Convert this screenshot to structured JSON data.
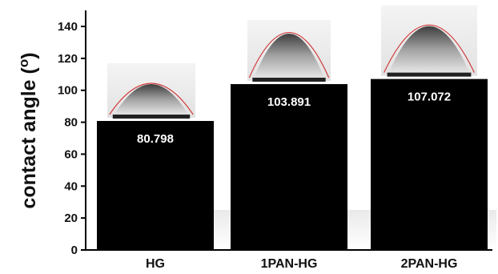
{
  "chart_data": {
    "type": "bar",
    "categories": [
      "HG",
      "1PAN-HG",
      "2PAN-HG"
    ],
    "values": [
      80.798,
      103.891,
      107.072
    ],
    "data_labels": [
      "80.798",
      "103.891",
      "107.072"
    ],
    "title": "",
    "xlabel": "",
    "ylabel": "contact angle (o)",
    "ylim": [
      0,
      140
    ],
    "yticks": [
      0,
      20,
      40,
      60,
      80,
      100,
      120,
      140
    ],
    "ytick_labels": [
      "0",
      "20",
      "40",
      "60",
      "80",
      "100",
      "120",
      "140"
    ],
    "grid": false,
    "legend": "none",
    "bar_color": "#000000",
    "inset_images": [
      "water droplet photo on HG",
      "water droplet photo on 1PAN-HG",
      "water droplet photo on 2PAN-HG"
    ]
  }
}
